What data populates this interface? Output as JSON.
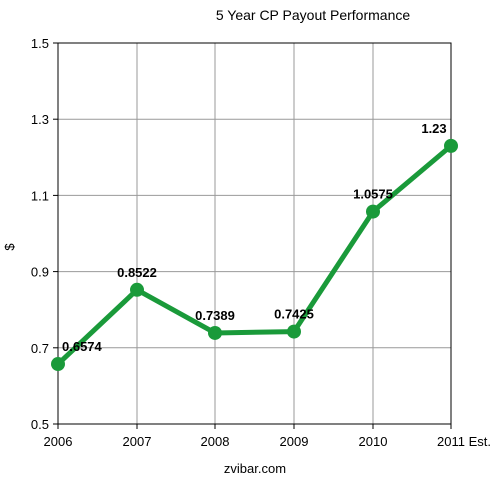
{
  "chart_data": {
    "type": "line",
    "title": "5 Year CP Payout Performance",
    "xlabel": "zvibar.com",
    "ylabel": "$",
    "categories": [
      "2006",
      "2007",
      "2008",
      "2009",
      "2010",
      "2011 Est."
    ],
    "values": [
      0.6574,
      0.8522,
      0.7389,
      0.7425,
      1.0575,
      1.23
    ],
    "data_labels": [
      "0.6574",
      "0.8522",
      "0.7389",
      "0.7425",
      "1.0575",
      "1.23"
    ],
    "ylim": [
      0.5,
      1.5
    ],
    "yticks": [
      0.5,
      0.7,
      0.9,
      1.1,
      1.3,
      1.5
    ],
    "ytick_labels": [
      "0.5",
      "0.7",
      "0.9",
      "1.1",
      "1.3",
      "1.5"
    ],
    "grid": true,
    "series_color": "#1a9a3a"
  }
}
